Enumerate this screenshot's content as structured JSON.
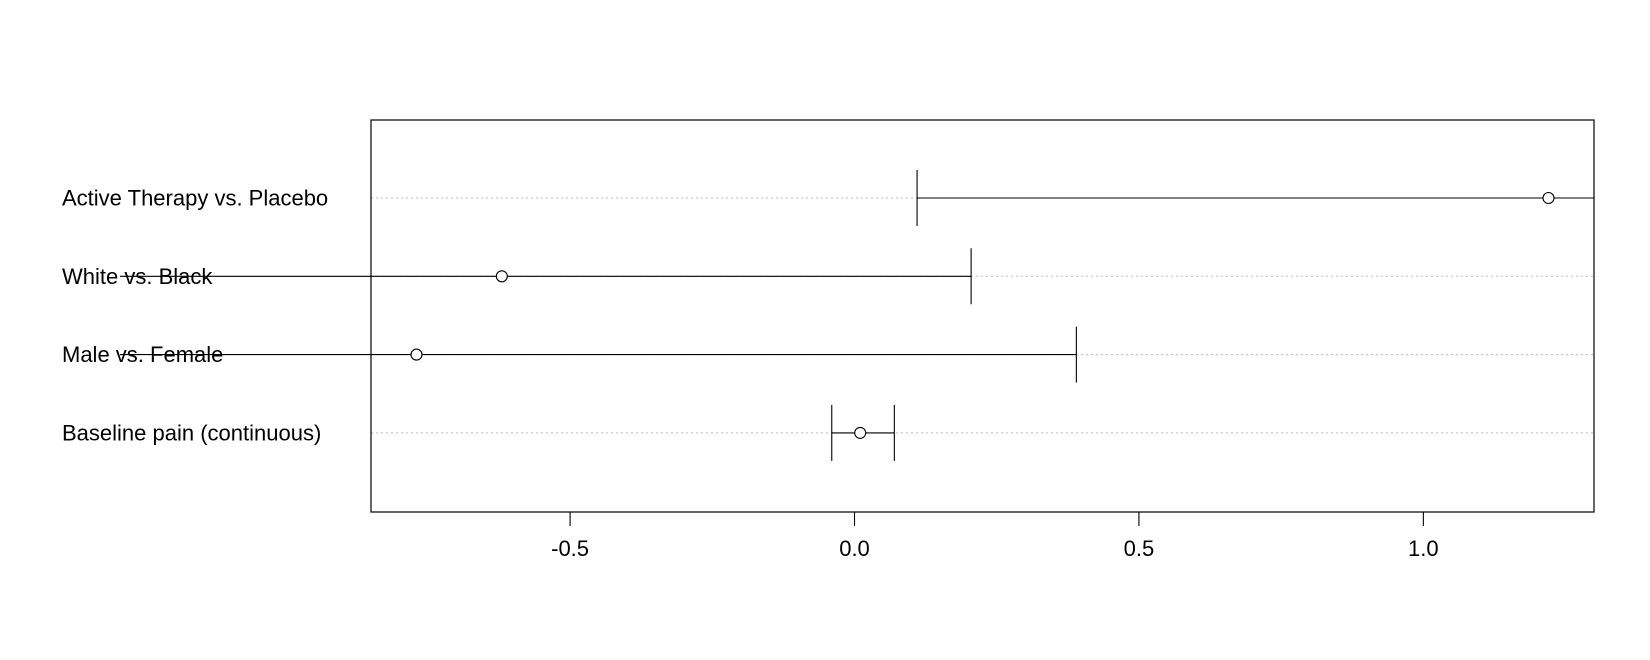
{
  "chart_data": {
    "type": "interval",
    "title": "",
    "xlabel": "",
    "ylabel": "",
    "xlim": [
      -0.85,
      1.3
    ],
    "x_ticks": [
      -0.5,
      0.0,
      0.5,
      1.0
    ],
    "x_tick_labels": [
      "-0.5",
      "0.0",
      "0.5",
      "1.0"
    ],
    "grid": "horizontal dotted",
    "rows": [
      {
        "label": "Active Therapy vs. Placebo",
        "estimate": 1.22,
        "lower": 0.11,
        "upper": 1.35
      },
      {
        "label": "White vs. Black",
        "estimate": -0.62,
        "lower": -1.3,
        "upper": 0.205
      },
      {
        "label": "Male vs. Female",
        "estimate": -0.77,
        "lower": -1.3,
        "upper": 0.39
      },
      {
        "label": "Baseline pain (continuous)",
        "estimate": 0.01,
        "lower": -0.04,
        "upper": 0.07
      }
    ],
    "colors": {
      "line": "#000000",
      "grid": "#bbbbbb"
    }
  }
}
